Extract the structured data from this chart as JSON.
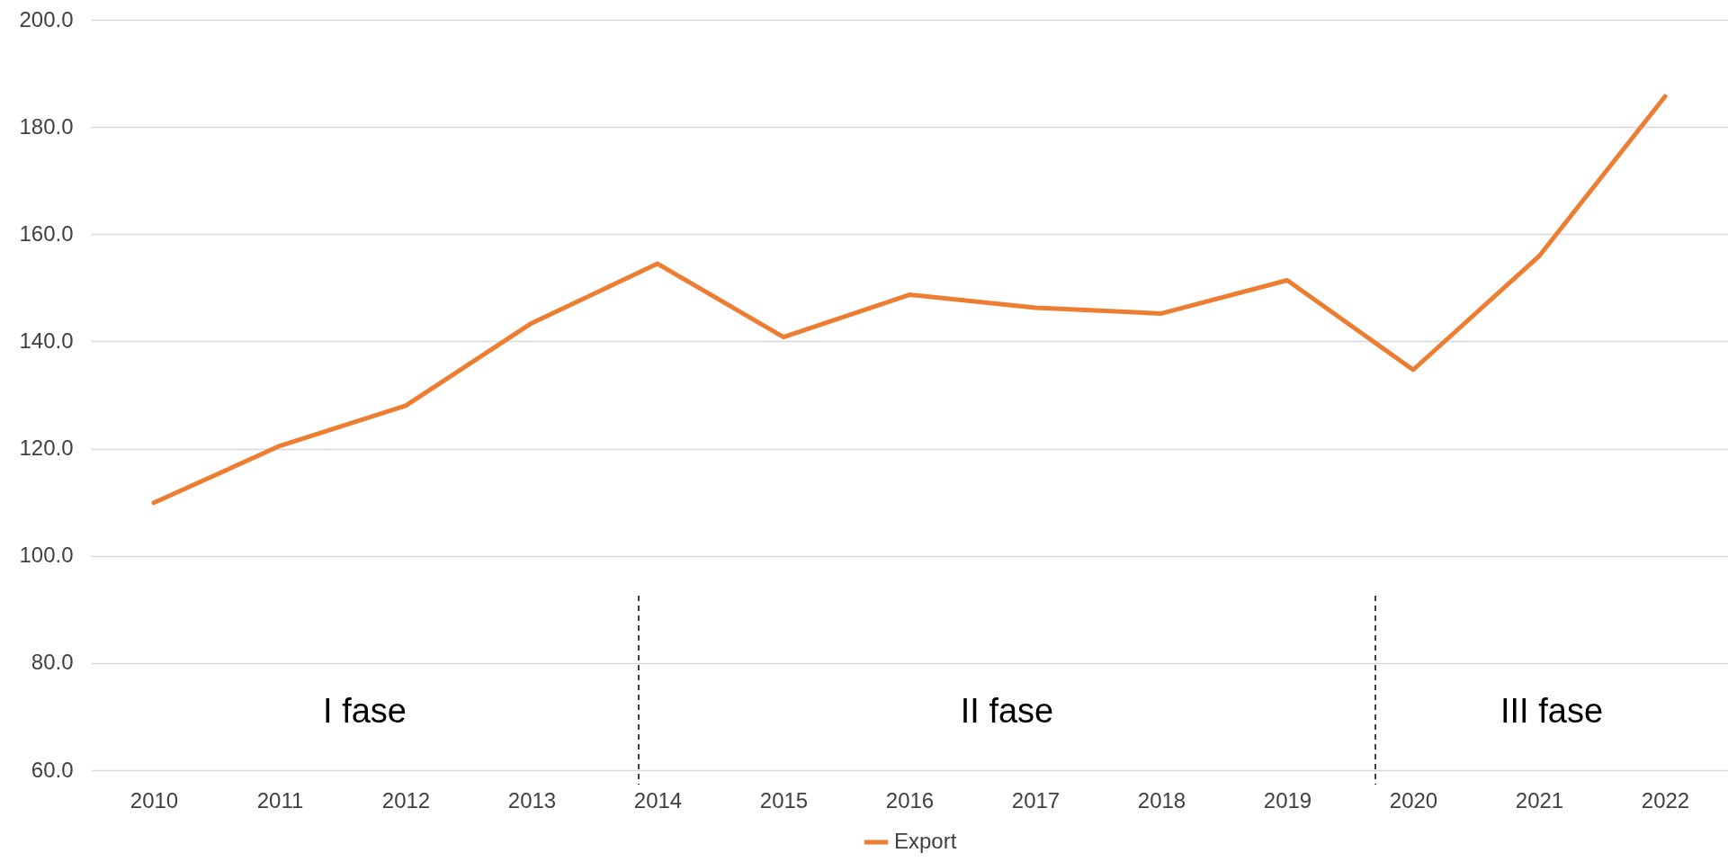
{
  "chart_data": {
    "type": "line",
    "x": [
      2010,
      2011,
      2012,
      2013,
      2014,
      2015,
      2016,
      2017,
      2018,
      2019,
      2020,
      2021,
      2022
    ],
    "series": [
      {
        "name": "Export",
        "color": "#ed7d31",
        "values": [
          109.9,
          120.5,
          128.0,
          143.4,
          154.5,
          140.8,
          148.7,
          146.3,
          145.2,
          151.4,
          134.7,
          155.9,
          185.7
        ]
      }
    ],
    "xlim": [
      2009.5,
      2022.5
    ],
    "xticks": [
      2010,
      2011,
      2012,
      2013,
      2014,
      2015,
      2016,
      2017,
      2018,
      2019,
      2020,
      2021,
      2022
    ],
    "ylim": [
      60,
      200
    ],
    "yticks": [
      {
        "value": 60,
        "label": "60.0"
      },
      {
        "value": 80,
        "label": "80.0"
      },
      {
        "value": 100,
        "label": "100.0"
      },
      {
        "value": 120,
        "label": "120.0"
      },
      {
        "value": 140,
        "label": "140.0"
      },
      {
        "value": 160,
        "label": "160.0"
      },
      {
        "value": 180,
        "label": "180.0"
      },
      {
        "value": 200,
        "label": "200.0"
      }
    ],
    "grid": "y",
    "legend": "bottom",
    "marker": "none",
    "line_style": "solid",
    "ref_lines": [
      {
        "axis": "x",
        "value": 2013.85,
        "color": "#000000",
        "line_style": "dashed"
      },
      {
        "axis": "x",
        "value": 2019.7,
        "color": "#000000",
        "line_style": "dashed"
      }
    ],
    "annotations": [
      "I fase",
      "II fase",
      "III fase"
    ]
  }
}
